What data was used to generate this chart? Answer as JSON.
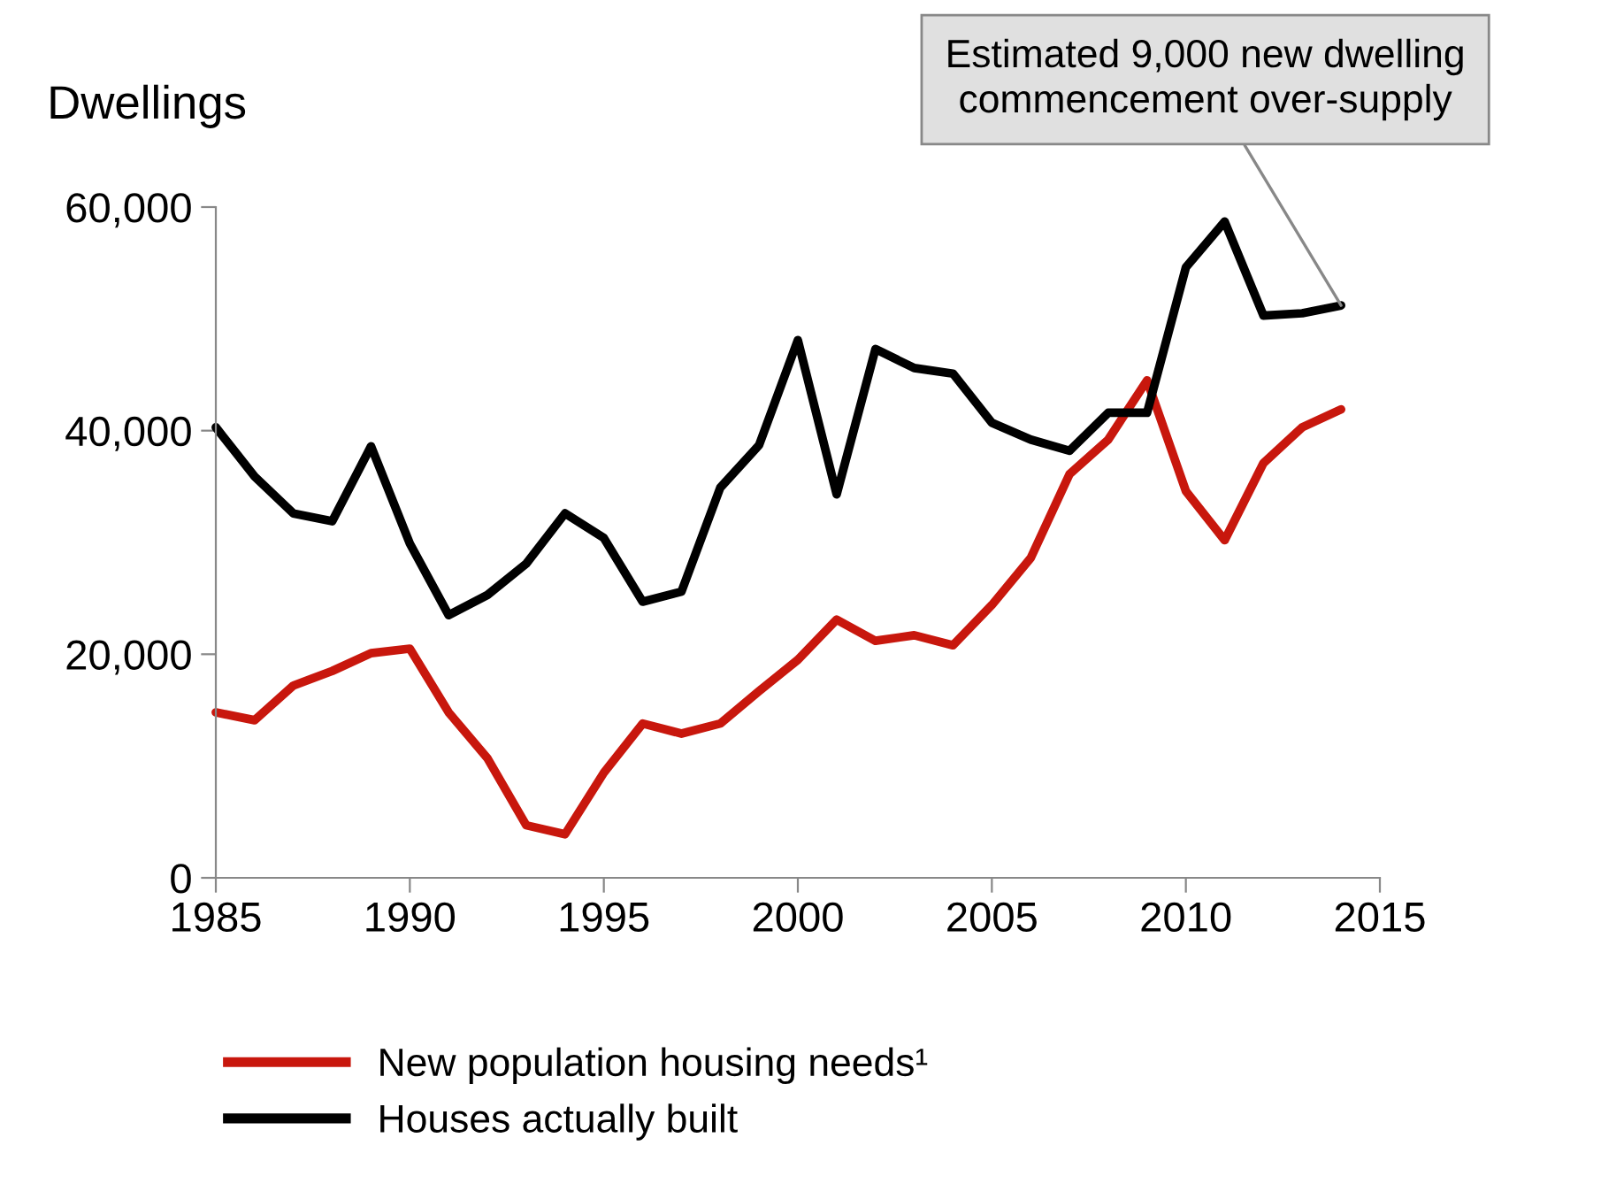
{
  "chart_data": {
    "type": "line",
    "ylabel": "Dwellings",
    "x": [
      1985,
      1986,
      1987,
      1988,
      1989,
      1990,
      1991,
      1992,
      1993,
      1994,
      1995,
      1996,
      1997,
      1998,
      1999,
      2000,
      2001,
      2002,
      2003,
      2004,
      2005,
      2006,
      2007,
      2008,
      2009,
      2010,
      2011,
      2012,
      2013,
      2014
    ],
    "series": [
      {
        "name": "New population housing needs¹",
        "color": "#c8170d",
        "values": [
          14800,
          14100,
          17200,
          18500,
          20100,
          20500,
          14800,
          10700,
          4700,
          3900,
          9400,
          13800,
          12900,
          13800,
          16700,
          19500,
          23100,
          21200,
          21700,
          20800,
          24400,
          28600,
          36100,
          39200,
          44500,
          34600,
          30200,
          37100,
          40300,
          41900
        ]
      },
      {
        "name": "Houses actually built",
        "color": "#000000",
        "values": [
          40300,
          35900,
          32600,
          31900,
          38600,
          29900,
          23500,
          25300,
          28100,
          32600,
          30400,
          24700,
          25600,
          34900,
          38700,
          48100,
          34300,
          47300,
          45600,
          45100,
          40700,
          39200,
          38200,
          41600,
          41600,
          54600,
          58700,
          50300,
          50500,
          51200
        ]
      }
    ],
    "xlim": [
      1985,
      2015
    ],
    "xticks": [
      1985,
      1990,
      1995,
      2000,
      2005,
      2010,
      2015
    ],
    "ylim": [
      0,
      60000
    ],
    "yticks": [
      {
        "value": 0,
        "label": "0"
      },
      {
        "value": 20000,
        "label": "20,000"
      },
      {
        "value": 40000,
        "label": "40,000"
      },
      {
        "value": 60000,
        "label": "60,000"
      }
    ],
    "annotations": [
      {
        "text": "Estimated 9,000 new dwelling\ncommencement over-supply",
        "x": 2014,
        "y": 51200
      }
    ],
    "grid": false,
    "legend": "bottom",
    "marker": "none",
    "line_style": "solid"
  }
}
